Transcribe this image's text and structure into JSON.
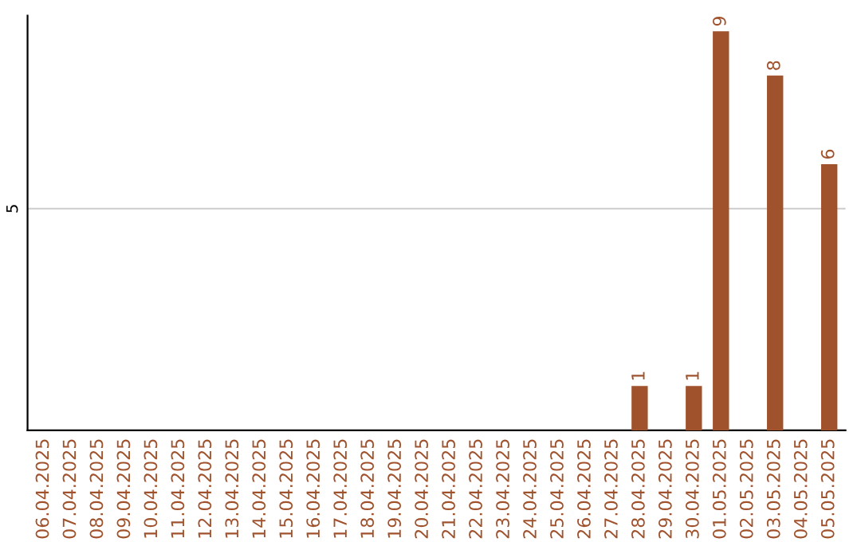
{
  "chart_data": {
    "type": "bar",
    "categories": [
      "06.04.2025",
      "07.04.2025",
      "08.04.2025",
      "09.04.2025",
      "10.04.2025",
      "11.04.2025",
      "12.04.2025",
      "13.04.2025",
      "14.04.2025",
      "15.04.2025",
      "16.04.2025",
      "17.04.2025",
      "18.04.2025",
      "19.04.2025",
      "20.04.2025",
      "21.04.2025",
      "22.04.2025",
      "23.04.2025",
      "24.04.2025",
      "25.04.2025",
      "26.04.2025",
      "27.04.2025",
      "28.04.2025",
      "29.04.2025",
      "30.04.2025",
      "01.05.2025",
      "02.05.2025",
      "03.05.2025",
      "04.05.2025",
      "05.05.2025"
    ],
    "values": [
      null,
      null,
      null,
      null,
      null,
      null,
      null,
      null,
      null,
      null,
      null,
      null,
      null,
      null,
      null,
      null,
      null,
      null,
      null,
      null,
      null,
      null,
      1,
      null,
      1,
      9,
      null,
      8,
      null,
      6
    ],
    "data_labels": true,
    "color": "#a0522d",
    "ylim": [
      0,
      9.35
    ],
    "yticks": [
      5
    ],
    "grid": "y"
  }
}
